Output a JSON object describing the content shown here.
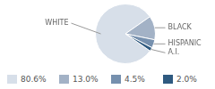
{
  "chart_data": {
    "type": "pie",
    "categories": [
      "WHITE",
      "BLACK",
      "HISPANIC",
      "A.I."
    ],
    "values": [
      80.6,
      13.0,
      4.5,
      2.0
    ],
    "value_labels": [
      "80.6%",
      "13.0%",
      "4.5%",
      "2.0%"
    ],
    "colors": [
      "#d7dfe9",
      "#a3b2c6",
      "#7690ae",
      "#2f5a80"
    ],
    "legend": "bottom"
  }
}
